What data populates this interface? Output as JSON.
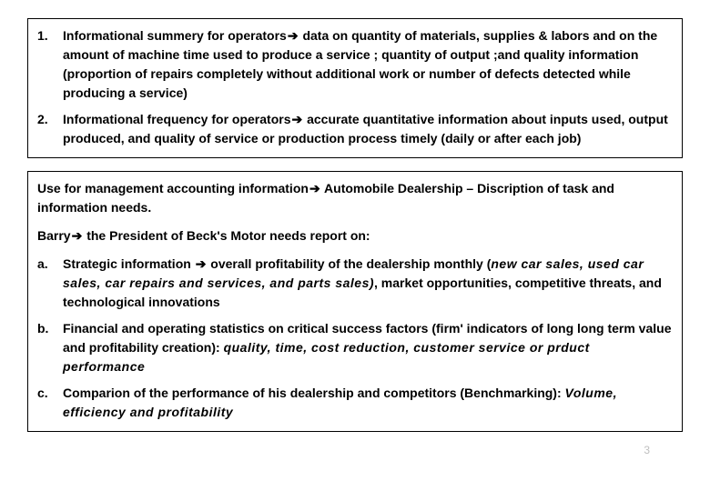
{
  "box1": {
    "items": [
      {
        "marker": "1.",
        "lead": "Informational summery for operators",
        "rest": " data on quantity of materials, supplies & labors and on the amount of machine time used to produce a service ; quantity of output ;and quality information (proportion of repairs completely without additional work or number of defects detected while producing a service)"
      },
      {
        "marker": "2.",
        "lead": "Informational frequency for operators",
        "rest": " accurate quantitative information about inputs used, output produced, and quality of service or production process timely (daily or after each job)"
      }
    ]
  },
  "box2": {
    "intro1_pre": "Use for management accounting information",
    "intro1_post": " Automobile Dealership – Discription of task and information needs.",
    "intro2_pre": "Barry",
    "intro2_post": " the President of Beck's Motor needs report on:",
    "items": [
      {
        "marker": "a.",
        "lead": "Strategic information ",
        "mid": " overall profitability of the dealership monthly (",
        "emph": "new car sales, used car sales, car repairs and services, and parts sales)",
        "tail": ", market opportunities, competitive threats, and technological innovations"
      },
      {
        "marker": "b.",
        "plain": "Financial and operating statistics on critical success factors (firm' indicators of long long term value and profitability creation): ",
        "emph": "quality, time, cost reduction, customer service or prduct performance"
      },
      {
        "marker": "c.",
        "plain": "Comparion of the performance of his dealership and competitors (Benchmarking): ",
        "emph": "Volume, efficiency and profitability"
      }
    ]
  },
  "arrow": "➔",
  "page_number": "3",
  "colors": {
    "text": "#000000",
    "border": "#000000",
    "background": "#ffffff",
    "pagenum": "#bfbfbf"
  }
}
